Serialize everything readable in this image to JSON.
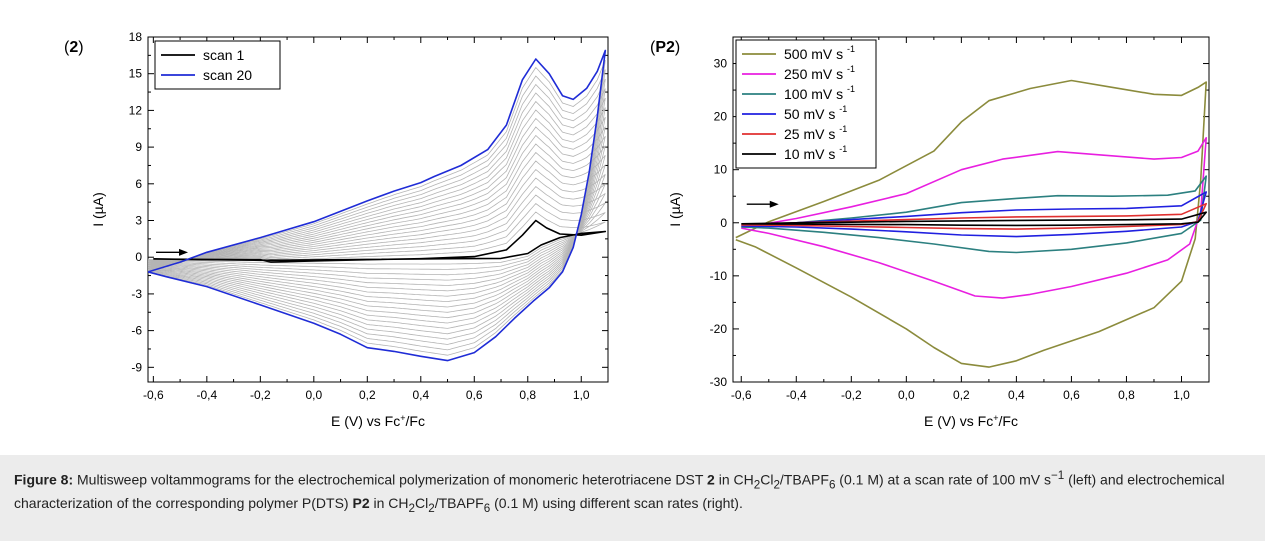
{
  "chart_data": [
    {
      "type": "line",
      "panel_label": "2",
      "xlabel": "E (V) vs Fc+/Fc",
      "ylabel": "I (µA)",
      "xlim": [
        -0.62,
        1.1
      ],
      "ylim": [
        -10.2,
        18
      ],
      "x_ticks": [
        "-0,6",
        "-0,4",
        "-0,2",
        "0,0",
        "0,2",
        "0,4",
        "0,6",
        "0,8",
        "1,0"
      ],
      "y_ticks": [
        "-9",
        "-6",
        "-3",
        "0",
        "3",
        "6",
        "9",
        "12",
        "15",
        "18"
      ],
      "legend_position": "top-left",
      "grid": false,
      "intermediate_scans_color": "#b4b4b4",
      "series": [
        {
          "name": "scan 1",
          "color": "#000000",
          "forward": [
            [
              -0.6,
              -0.15
            ],
            [
              -0.4,
              -0.18
            ],
            [
              -0.2,
              -0.2
            ],
            [
              -0.16,
              -0.4
            ],
            [
              0.0,
              -0.3
            ],
            [
              0.2,
              -0.2
            ],
            [
              0.4,
              -0.12
            ],
            [
              0.6,
              0.05
            ],
            [
              0.72,
              0.6
            ],
            [
              0.78,
              1.8
            ],
            [
              0.83,
              3.0
            ],
            [
              0.87,
              2.4
            ],
            [
              0.92,
              1.9
            ],
            [
              1.0,
              1.8
            ],
            [
              1.09,
              2.1
            ]
          ],
          "reverse": [
            [
              1.09,
              2.1
            ],
            [
              1.0,
              1.95
            ],
            [
              0.92,
              1.6
            ],
            [
              0.85,
              1.0
            ],
            [
              0.8,
              0.3
            ],
            [
              0.7,
              -0.1
            ],
            [
              0.5,
              -0.12
            ],
            [
              0.2,
              -0.18
            ],
            [
              0.0,
              -0.22
            ],
            [
              -0.2,
              -0.25
            ],
            [
              -0.4,
              -0.2
            ],
            [
              -0.6,
              -0.15
            ]
          ]
        },
        {
          "name": "scan 20",
          "color": "#1f2cd6",
          "forward": [
            [
              -0.62,
              -1.2
            ],
            [
              -0.5,
              -0.4
            ],
            [
              -0.4,
              0.4
            ],
            [
              -0.2,
              1.6
            ],
            [
              0.0,
              2.9
            ],
            [
              0.2,
              4.6
            ],
            [
              0.3,
              5.4
            ],
            [
              0.4,
              6.1
            ],
            [
              0.45,
              6.6
            ],
            [
              0.55,
              7.5
            ],
            [
              0.65,
              8.8
            ],
            [
              0.72,
              10.8
            ],
            [
              0.78,
              14.5
            ],
            [
              0.83,
              16.2
            ],
            [
              0.88,
              15.0
            ],
            [
              0.93,
              13.2
            ],
            [
              0.97,
              12.9
            ],
            [
              1.02,
              13.8
            ],
            [
              1.06,
              15.2
            ],
            [
              1.09,
              16.9
            ]
          ],
          "reverse": [
            [
              1.09,
              16.9
            ],
            [
              1.06,
              11.5
            ],
            [
              1.03,
              7.0
            ],
            [
              1.0,
              3.5
            ],
            [
              0.97,
              0.8
            ],
            [
              0.93,
              -1.2
            ],
            [
              0.88,
              -2.5
            ],
            [
              0.82,
              -3.6
            ],
            [
              0.75,
              -5.0
            ],
            [
              0.68,
              -6.5
            ],
            [
              0.6,
              -7.8
            ],
            [
              0.5,
              -8.45
            ],
            [
              0.4,
              -8.1
            ],
            [
              0.3,
              -7.7
            ],
            [
              0.2,
              -7.4
            ],
            [
              0.1,
              -6.3
            ],
            [
              0.0,
              -5.4
            ],
            [
              -0.2,
              -3.9
            ],
            [
              -0.4,
              -2.4
            ],
            [
              -0.55,
              -1.6
            ],
            [
              -0.62,
              -1.2
            ]
          ]
        }
      ]
    },
    {
      "type": "line",
      "panel_label": "P2",
      "xlabel": "E (V) vs Fc+/Fc",
      "ylabel": "I (µA)",
      "xlim": [
        -0.63,
        1.1
      ],
      "ylim": [
        -30,
        35
      ],
      "x_ticks": [
        "-0,6",
        "-0,4",
        "-0,2",
        "0,0",
        "0,2",
        "0,4",
        "0,6",
        "0,8",
        "1,0"
      ],
      "y_ticks": [
        "-30",
        "-20",
        "-10",
        "0",
        "10",
        "20",
        "30"
      ],
      "legend_position": "top-left",
      "grid": false,
      "series": [
        {
          "name": "500 mV s-1",
          "color": "#8b8b3c",
          "forward": [
            [
              -0.62,
              -2.8
            ],
            [
              -0.5,
              0.2
            ],
            [
              -0.3,
              4.0
            ],
            [
              -0.1,
              8.0
            ],
            [
              0.1,
              13.5
            ],
            [
              0.2,
              19.0
            ],
            [
              0.3,
              23.0
            ],
            [
              0.45,
              25.3
            ],
            [
              0.6,
              26.8
            ],
            [
              0.75,
              25.5
            ],
            [
              0.9,
              24.2
            ],
            [
              1.0,
              24.0
            ],
            [
              1.06,
              25.5
            ],
            [
              1.09,
              26.5
            ]
          ],
          "reverse": [
            [
              1.09,
              26.5
            ],
            [
              1.07,
              8.0
            ],
            [
              1.05,
              -3.0
            ],
            [
              1.0,
              -11.0
            ],
            [
              0.9,
              -16.0
            ],
            [
              0.7,
              -20.5
            ],
            [
              0.5,
              -24.0
            ],
            [
              0.4,
              -26.0
            ],
            [
              0.3,
              -27.2
            ],
            [
              0.2,
              -26.5
            ],
            [
              0.1,
              -23.5
            ],
            [
              0.0,
              -20.0
            ],
            [
              -0.2,
              -14.0
            ],
            [
              -0.4,
              -8.5
            ],
            [
              -0.55,
              -4.5
            ],
            [
              -0.62,
              -3.2
            ]
          ]
        },
        {
          "name": "250 mV s-1",
          "color": "#e81fe0",
          "forward": [
            [
              -0.6,
              -1.0
            ],
            [
              -0.4,
              0.8
            ],
            [
              -0.2,
              3.0
            ],
            [
              0.0,
              5.5
            ],
            [
              0.2,
              10.0
            ],
            [
              0.35,
              12.0
            ],
            [
              0.55,
              13.4
            ],
            [
              0.7,
              12.8
            ],
            [
              0.9,
              12.0
            ],
            [
              1.0,
              12.3
            ],
            [
              1.06,
              13.5
            ],
            [
              1.09,
              16.0
            ]
          ],
          "reverse": [
            [
              1.09,
              16.0
            ],
            [
              1.07,
              2.0
            ],
            [
              1.03,
              -4.0
            ],
            [
              0.95,
              -7.0
            ],
            [
              0.8,
              -9.5
            ],
            [
              0.6,
              -12.0
            ],
            [
              0.45,
              -13.5
            ],
            [
              0.35,
              -14.2
            ],
            [
              0.25,
              -13.8
            ],
            [
              0.1,
              -11.0
            ],
            [
              -0.1,
              -7.5
            ],
            [
              -0.3,
              -4.5
            ],
            [
              -0.5,
              -2.0
            ],
            [
              -0.6,
              -1.0
            ]
          ]
        },
        {
          "name": "100 mV s-1",
          "color": "#2c8080",
          "forward": [
            [
              -0.6,
              -0.8
            ],
            [
              -0.4,
              0.0
            ],
            [
              -0.2,
              0.9
            ],
            [
              0.0,
              2.0
            ],
            [
              0.2,
              3.8
            ],
            [
              0.4,
              4.6
            ],
            [
              0.55,
              5.1
            ],
            [
              0.75,
              5.0
            ],
            [
              0.95,
              5.2
            ],
            [
              1.05,
              6.0
            ],
            [
              1.09,
              8.8
            ]
          ],
          "reverse": [
            [
              1.09,
              8.8
            ],
            [
              1.07,
              0.5
            ],
            [
              1.0,
              -2.0
            ],
            [
              0.8,
              -3.8
            ],
            [
              0.6,
              -5.0
            ],
            [
              0.4,
              -5.6
            ],
            [
              0.3,
              -5.4
            ],
            [
              0.1,
              -4.0
            ],
            [
              -0.1,
              -2.8
            ],
            [
              -0.3,
              -1.8
            ],
            [
              -0.5,
              -1.0
            ],
            [
              -0.6,
              -0.8
            ]
          ]
        },
        {
          "name": "50 mV s-1",
          "color": "#2020e0",
          "forward": [
            [
              -0.6,
              -0.6
            ],
            [
              -0.4,
              0.0
            ],
            [
              -0.2,
              0.6
            ],
            [
              0.0,
              1.2
            ],
            [
              0.2,
              1.9
            ],
            [
              0.4,
              2.4
            ],
            [
              0.6,
              2.6
            ],
            [
              0.8,
              2.7
            ],
            [
              1.0,
              3.2
            ],
            [
              1.09,
              5.8
            ]
          ],
          "reverse": [
            [
              1.09,
              5.8
            ],
            [
              1.06,
              0.3
            ],
            [
              1.0,
              -0.8
            ],
            [
              0.8,
              -1.6
            ],
            [
              0.6,
              -2.2
            ],
            [
              0.4,
              -2.6
            ],
            [
              0.2,
              -2.3
            ],
            [
              0.0,
              -1.7
            ],
            [
              -0.2,
              -1.2
            ],
            [
              -0.4,
              -0.8
            ],
            [
              -0.6,
              -0.6
            ]
          ]
        },
        {
          "name": "25 mV s-1",
          "color": "#e03030",
          "forward": [
            [
              -0.6,
              -0.4
            ],
            [
              -0.4,
              0.0
            ],
            [
              -0.2,
              0.3
            ],
            [
              0.0,
              0.6
            ],
            [
              0.2,
              0.9
            ],
            [
              0.4,
              1.1
            ],
            [
              0.6,
              1.2
            ],
            [
              0.8,
              1.3
            ],
            [
              1.0,
              1.6
            ],
            [
              1.09,
              3.6
            ]
          ],
          "reverse": [
            [
              1.09,
              3.6
            ],
            [
              1.06,
              0.2
            ],
            [
              1.0,
              -0.3
            ],
            [
              0.8,
              -0.7
            ],
            [
              0.6,
              -1.0
            ],
            [
              0.4,
              -1.2
            ],
            [
              0.2,
              -1.1
            ],
            [
              0.0,
              -0.9
            ],
            [
              -0.2,
              -0.7
            ],
            [
              -0.4,
              -0.5
            ],
            [
              -0.6,
              -0.4
            ]
          ]
        },
        {
          "name": "10 mV s-1",
          "color": "#000000",
          "forward": [
            [
              -0.6,
              -0.2
            ],
            [
              -0.4,
              0.0
            ],
            [
              -0.2,
              0.1
            ],
            [
              0.0,
              0.25
            ],
            [
              0.2,
              0.35
            ],
            [
              0.4,
              0.45
            ],
            [
              0.6,
              0.5
            ],
            [
              0.8,
              0.55
            ],
            [
              1.0,
              0.7
            ],
            [
              1.09,
              2.0
            ]
          ],
          "reverse": [
            [
              1.09,
              2.0
            ],
            [
              1.06,
              0.1
            ],
            [
              1.0,
              -0.2
            ],
            [
              0.8,
              -0.35
            ],
            [
              0.6,
              -0.45
            ],
            [
              0.4,
              -0.5
            ],
            [
              0.2,
              -0.45
            ],
            [
              0.0,
              -0.35
            ],
            [
              -0.2,
              -0.3
            ],
            [
              -0.4,
              -0.25
            ],
            [
              -0.6,
              -0.2
            ]
          ]
        }
      ]
    }
  ],
  "caption": {
    "figure_label": "Figure 8:",
    "text_1": " Multisweep voltammograms for the electrochemical polymerization of monomeric heterotriacene DST ",
    "bold_1": "2",
    "text_2": " in CH",
    "sub_1": "2",
    "text_3": "Cl",
    "sub_2": "2",
    "text_4": "/TBAPF",
    "sub_3": "6",
    "text_5": " (0.1 M) at a scan rate of 100 mV s",
    "sup_1": "−1",
    "text_6": " (left) and electrochemical characterization of the corresponding polymer P(DTS) ",
    "bold_2": "P2",
    "text_7": " in CH",
    "sub_4": "2",
    "text_8": "Cl",
    "sub_5": "2",
    "text_9": "/TBAPF",
    "sub_6": "6",
    "text_10": " (0.1 M) using different scan rates (right)."
  }
}
